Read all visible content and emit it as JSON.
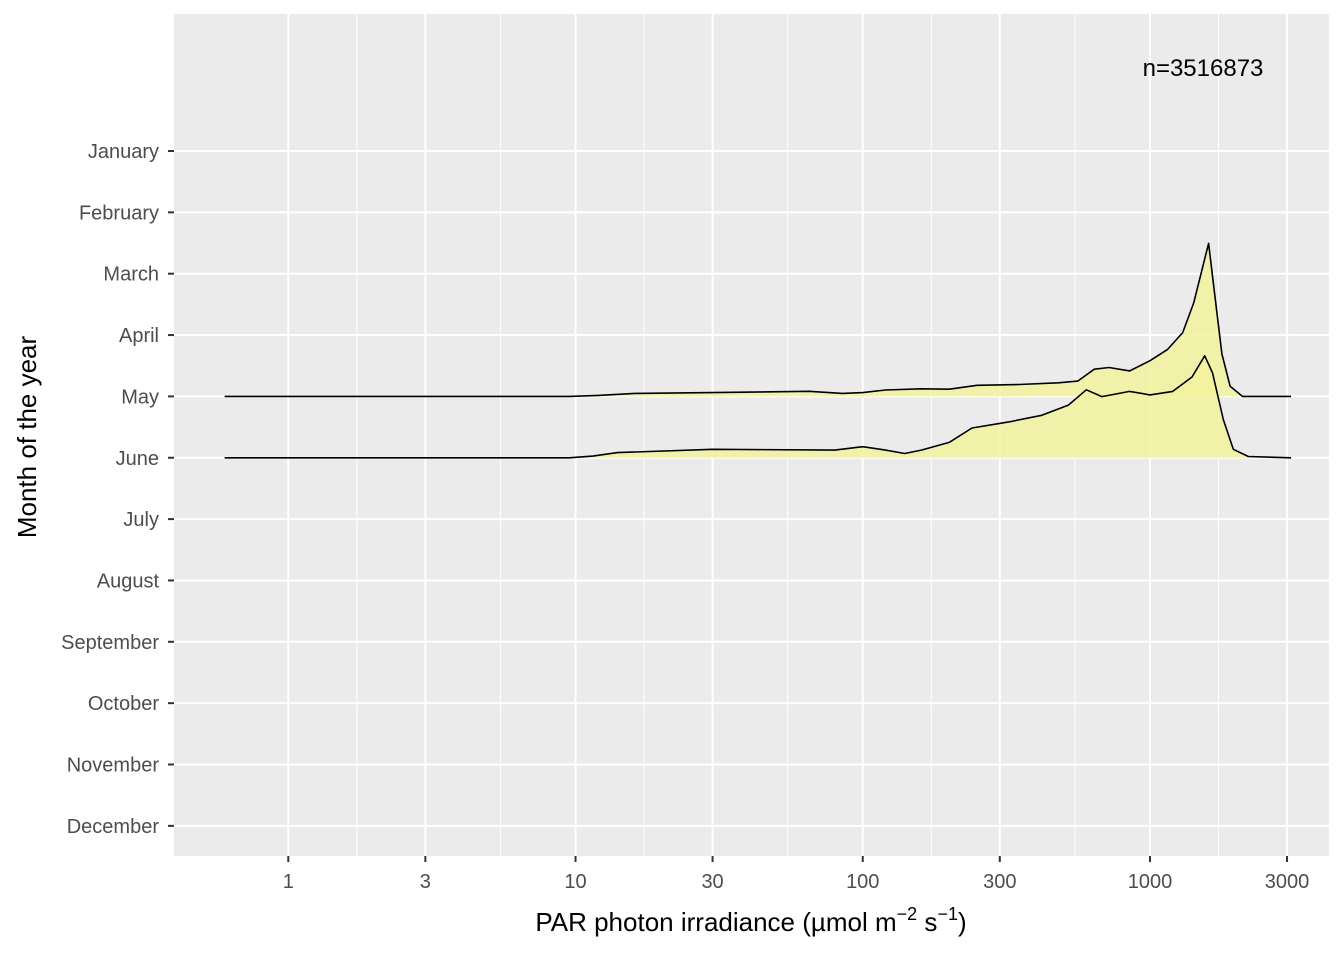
{
  "chart_data": {
    "type": "area",
    "subtype": "ridgeline-density",
    "x_scale": "log10",
    "xlim": [
      0.4,
      4200
    ],
    "xlabel": {
      "prefix": "PAR photon irradiance (",
      "unit_base": "µmol m",
      "exp1": "−2",
      "mid": " s",
      "exp2": "−1",
      "suffix": ")"
    },
    "ylabel": "Month of the year",
    "x_ticks": [
      {
        "value": 1,
        "label": "1"
      },
      {
        "value": 3,
        "label": "3"
      },
      {
        "value": 10,
        "label": "10"
      },
      {
        "value": 30,
        "label": "30"
      },
      {
        "value": 100,
        "label": "100"
      },
      {
        "value": 300,
        "label": "300"
      },
      {
        "value": 1000,
        "label": "1000"
      },
      {
        "value": 3000,
        "label": "3000"
      }
    ],
    "categories": [
      "January",
      "February",
      "March",
      "April",
      "May",
      "June",
      "July",
      "August",
      "September",
      "October",
      "November",
      "December"
    ],
    "annotation": "n=3516873",
    "fill_color": "#f2f29e",
    "line_color": "#000000",
    "panel_color": "#ebebeb",
    "grid_color": "#ffffff",
    "series": [
      {
        "category": "May",
        "density": [
          [
            0.6,
            0
          ],
          [
            9.5,
            0
          ],
          [
            12,
            0.012
          ],
          [
            16,
            0.035
          ],
          [
            30,
            0.045
          ],
          [
            65,
            0.06
          ],
          [
            85,
            0.035
          ],
          [
            100,
            0.045
          ],
          [
            120,
            0.075
          ],
          [
            160,
            0.09
          ],
          [
            200,
            0.085
          ],
          [
            250,
            0.13
          ],
          [
            350,
            0.14
          ],
          [
            480,
            0.16
          ],
          [
            560,
            0.18
          ],
          [
            640,
            0.32
          ],
          [
            720,
            0.34
          ],
          [
            850,
            0.3
          ],
          [
            1000,
            0.42
          ],
          [
            1150,
            0.55
          ],
          [
            1300,
            0.75
          ],
          [
            1420,
            1.1
          ],
          [
            1520,
            1.5
          ],
          [
            1600,
            1.8
          ],
          [
            1680,
            1.2
          ],
          [
            1780,
            0.5
          ],
          [
            1900,
            0.12
          ],
          [
            2100,
            0
          ],
          [
            3100,
            0
          ]
        ]
      },
      {
        "category": "June",
        "density": [
          [
            0.6,
            0
          ],
          [
            9.5,
            0
          ],
          [
            11.5,
            0.02
          ],
          [
            14,
            0.06
          ],
          [
            30,
            0.1
          ],
          [
            80,
            0.09
          ],
          [
            100,
            0.13
          ],
          [
            120,
            0.09
          ],
          [
            140,
            0.05
          ],
          [
            160,
            0.09
          ],
          [
            200,
            0.18
          ],
          [
            240,
            0.35
          ],
          [
            320,
            0.42
          ],
          [
            420,
            0.5
          ],
          [
            520,
            0.62
          ],
          [
            600,
            0.8
          ],
          [
            680,
            0.72
          ],
          [
            850,
            0.78
          ],
          [
            1000,
            0.74
          ],
          [
            1200,
            0.78
          ],
          [
            1400,
            0.95
          ],
          [
            1550,
            1.2
          ],
          [
            1650,
            1.0
          ],
          [
            1800,
            0.45
          ],
          [
            1950,
            0.1
          ],
          [
            2200,
            0.015
          ],
          [
            3100,
            0
          ]
        ]
      }
    ],
    "grid": true
  }
}
